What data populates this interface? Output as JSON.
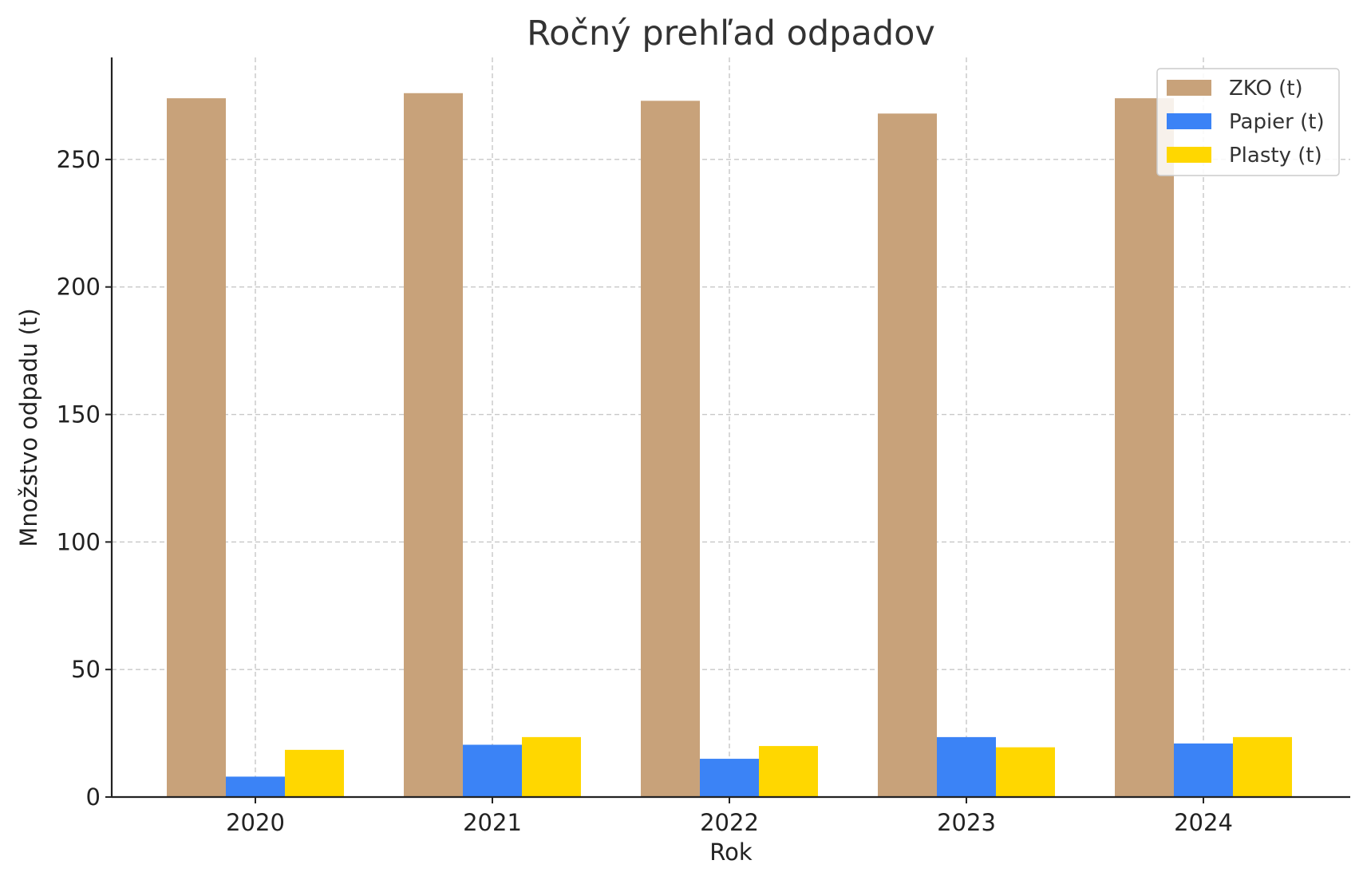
{
  "chart_data": {
    "type": "bar",
    "title": "Ročný prehľad odpadov",
    "xlabel": "Rok",
    "ylabel": "Množstvo odpadu (t)",
    "categories": [
      "2020",
      "2021",
      "2022",
      "2023",
      "2024"
    ],
    "series": [
      {
        "name": "ZKO (t)",
        "color": "#c8a27a",
        "values": [
          274,
          276,
          273,
          268,
          274
        ]
      },
      {
        "name": "Papier (t)",
        "color": "#3b83f6",
        "values": [
          8,
          20.5,
          15,
          23.5,
          21
        ]
      },
      {
        "name": "Plasty (t)",
        "color": "#ffd700",
        "values": [
          18.5,
          23.5,
          20,
          19.5,
          23.5
        ]
      }
    ],
    "yticks": [
      0,
      50,
      100,
      150,
      200,
      250
    ],
    "ylim": [
      0,
      290
    ],
    "grid": true,
    "legend_position": "top-right"
  }
}
